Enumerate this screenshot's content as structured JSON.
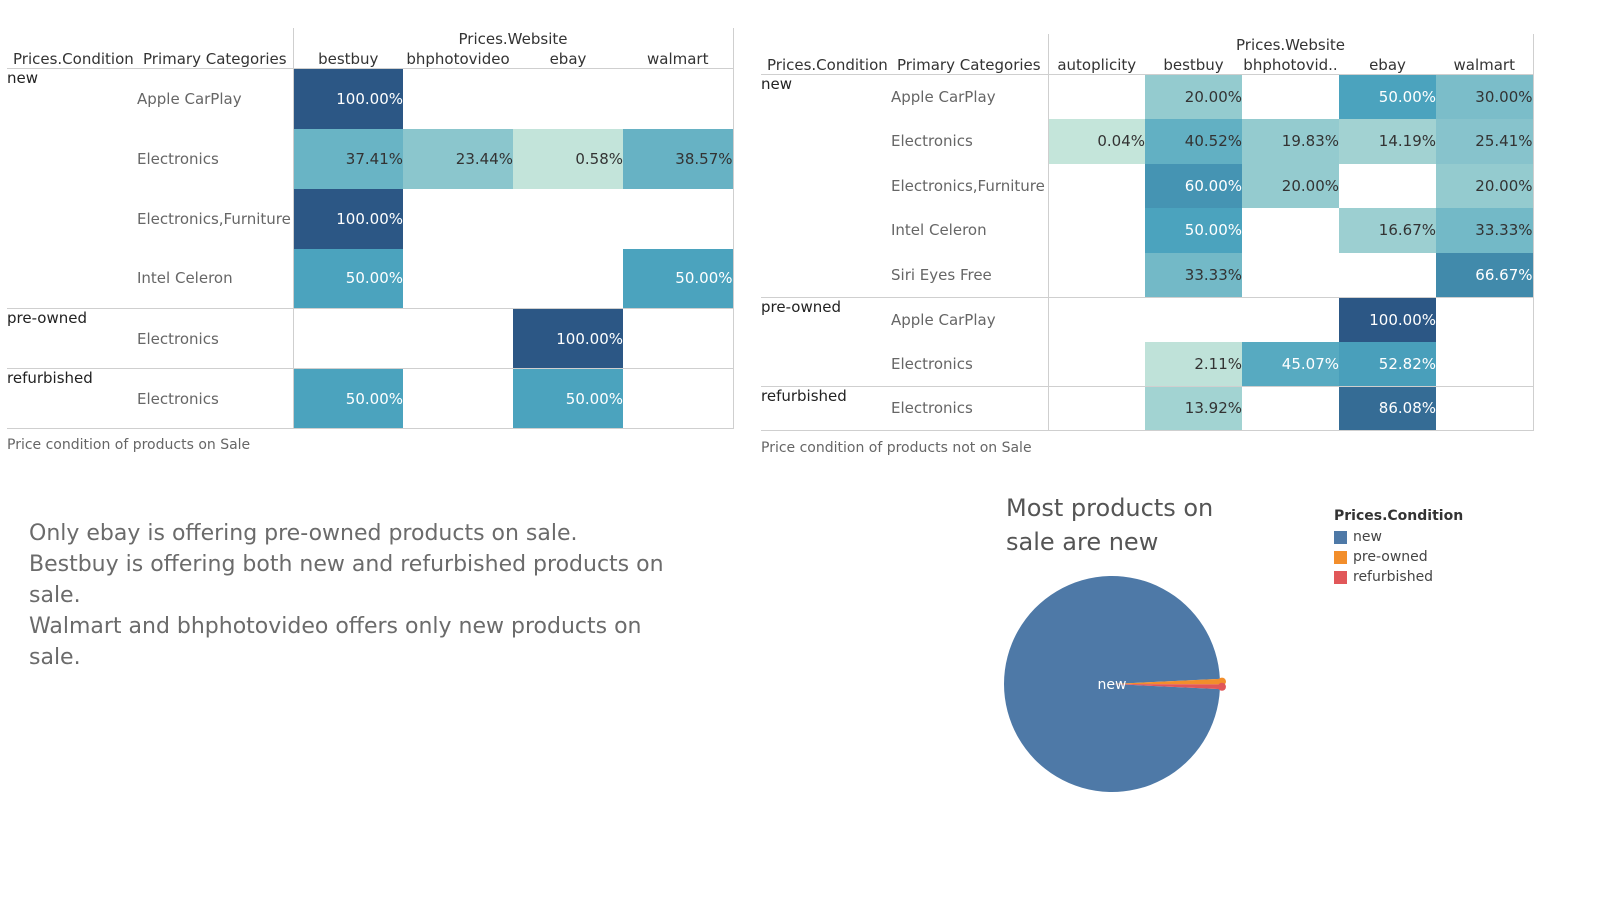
{
  "chart_data": [
    {
      "type": "heatmap",
      "title": "",
      "caption": "Price condition of products on Sale",
      "row_dims": [
        "Prices.Condition",
        "Primary Categories"
      ],
      "column_dim": "Prices.Website",
      "columns": [
        "bestbuy",
        "bhphotovideo",
        "ebay",
        "walmart"
      ],
      "groups": [
        {
          "condition": "new",
          "rows": [
            {
              "category": "Apple CarPlay",
              "values": [
                "100.00%",
                "",
                "",
                ""
              ]
            },
            {
              "category": "Electronics",
              "values": [
                "37.41%",
                "23.44%",
                "0.58%",
                "38.57%"
              ]
            },
            {
              "category": "Electronics,Furniture",
              "values": [
                "100.00%",
                "",
                "",
                ""
              ]
            },
            {
              "category": "Intel Celeron",
              "values": [
                "50.00%",
                "",
                "",
                "50.00%"
              ]
            }
          ]
        },
        {
          "condition": "pre-owned",
          "rows": [
            {
              "category": "Electronics",
              "values": [
                "",
                "",
                "100.00%",
                ""
              ]
            }
          ]
        },
        {
          "condition": "refurbished",
          "rows": [
            {
              "category": "Electronics",
              "values": [
                "50.00%",
                "",
                "50.00%",
                ""
              ]
            }
          ]
        }
      ]
    },
    {
      "type": "heatmap",
      "title": "",
      "caption": "Price condition of products not on Sale",
      "row_dims": [
        "Prices.Condition",
        "Primary Categories"
      ],
      "column_dim": "Prices.Website",
      "columns": [
        "autoplicity",
        "bestbuy",
        "bhphotovid..",
        "ebay",
        "walmart"
      ],
      "groups": [
        {
          "condition": "new",
          "rows": [
            {
              "category": "Apple CarPlay",
              "values": [
                "",
                "20.00%",
                "",
                "50.00%",
                "30.00%"
              ]
            },
            {
              "category": "Electronics",
              "values": [
                "0.04%",
                "40.52%",
                "19.83%",
                "14.19%",
                "25.41%"
              ]
            },
            {
              "category": "Electronics,Furniture",
              "values": [
                "",
                "60.00%",
                "20.00%",
                "",
                "20.00%"
              ]
            },
            {
              "category": "Intel Celeron",
              "values": [
                "",
                "50.00%",
                "",
                "16.67%",
                "33.33%"
              ]
            },
            {
              "category": "Siri Eyes Free",
              "values": [
                "",
                "33.33%",
                "",
                "",
                "66.67%"
              ]
            }
          ]
        },
        {
          "condition": "pre-owned",
          "rows": [
            {
              "category": "Apple CarPlay",
              "values": [
                "",
                "",
                "",
                "100.00%",
                ""
              ]
            },
            {
              "category": "Electronics",
              "values": [
                "",
                "2.11%",
                "45.07%",
                "52.82%",
                ""
              ]
            }
          ]
        },
        {
          "condition": "refurbished",
          "rows": [
            {
              "category": "Electronics",
              "values": [
                "",
                "13.92%",
                "",
                "86.08%",
                ""
              ]
            }
          ]
        }
      ]
    },
    {
      "type": "pie",
      "title": "Most products on sale are new",
      "legend_title": "Prices.Condition",
      "legend_placement": "right",
      "slice_label": "new",
      "slices": [
        {
          "label": "new",
          "value": 0.985,
          "color": "#4e79a7"
        },
        {
          "label": "pre-owned",
          "value": 0.008,
          "color": "#f28e2b"
        },
        {
          "label": "refurbished",
          "value": 0.007,
          "color": "#e15759"
        }
      ]
    }
  ],
  "annotation": {
    "lines": [
      "Only ebay is offering pre-owned products on sale.",
      "Bestbuy is offering both new and refurbished products on sale.",
      "Walmart and bhphotovideo offers only new products on sale."
    ]
  },
  "colors": {
    "scale_low": "#c4e5da",
    "scale_mid": "#4ba3be",
    "scale_high": "#2c5785",
    "light_text": "#ffffff",
    "dark_text": "#333333"
  }
}
